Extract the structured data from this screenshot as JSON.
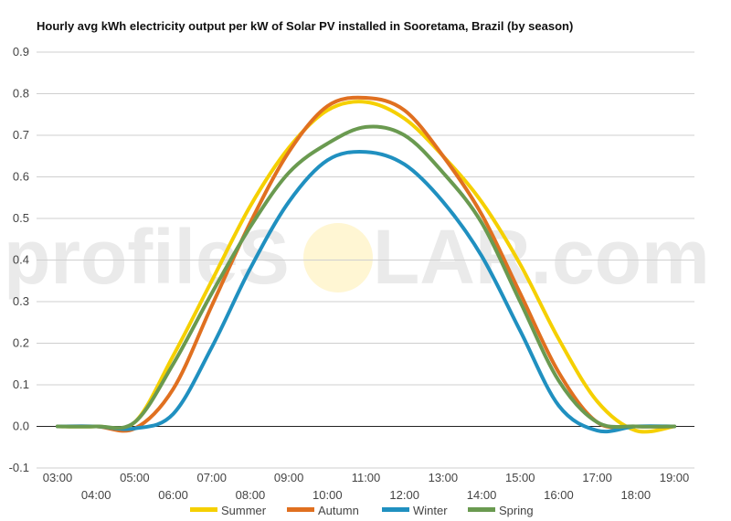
{
  "chart_data": {
    "type": "line",
    "title": "Hourly avg kWh electricity output per kW of Solar PV installed in Sooretama, Brazil (by season)",
    "xlabel": "",
    "ylabel": "",
    "x": [
      "03:00",
      "04:00",
      "05:00",
      "06:00",
      "07:00",
      "08:00",
      "09:00",
      "10:00",
      "11:00",
      "12:00",
      "13:00",
      "14:00",
      "15:00",
      "16:00",
      "17:00",
      "18:00",
      "19:00"
    ],
    "ylim": [
      -0.1,
      0.9
    ],
    "yticks": [
      -0.1,
      0.0,
      0.1,
      0.2,
      0.3,
      0.4,
      0.5,
      0.6,
      0.7,
      0.8,
      0.9
    ],
    "grid": true,
    "legend_position": "bottom",
    "series": [
      {
        "name": "Summer",
        "color": "#f5d000",
        "values": [
          0.0,
          0.0,
          0.01,
          0.17,
          0.35,
          0.53,
          0.67,
          0.76,
          0.78,
          0.74,
          0.65,
          0.54,
          0.39,
          0.21,
          0.06,
          -0.01,
          0.0
        ]
      },
      {
        "name": "Autumn",
        "color": "#e07020",
        "values": [
          0.0,
          0.0,
          -0.005,
          0.09,
          0.29,
          0.49,
          0.66,
          0.77,
          0.79,
          0.76,
          0.65,
          0.51,
          0.32,
          0.13,
          0.01,
          0.0,
          0.0
        ]
      },
      {
        "name": "Winter",
        "color": "#2090c0",
        "values": [
          0.0,
          0.0,
          -0.005,
          0.03,
          0.19,
          0.38,
          0.54,
          0.64,
          0.66,
          0.63,
          0.54,
          0.41,
          0.23,
          0.05,
          -0.01,
          0.0,
          0.0
        ]
      },
      {
        "name": "Spring",
        "color": "#6a9a50",
        "values": [
          0.0,
          0.0,
          0.01,
          0.15,
          0.32,
          0.48,
          0.61,
          0.68,
          0.72,
          0.7,
          0.61,
          0.49,
          0.3,
          0.11,
          0.01,
          0.0,
          0.0
        ]
      }
    ]
  },
  "watermark": {
    "text_left": "profileS",
    "text_right": "LAR.com",
    "sun_color": "#fff3c4"
  },
  "colors": {
    "grid": "#cfcfcf",
    "zero_line": "#222222"
  }
}
